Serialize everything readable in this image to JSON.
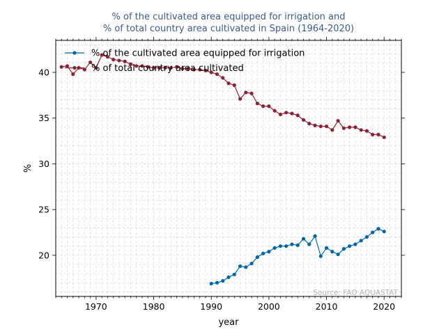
{
  "chart_data": {
    "type": "line",
    "title": "% of the cultivated area equipped for irrigation and\n% of total country area cultivated in Spain (1964-2020)",
    "xlabel": "year",
    "ylabel": "%",
    "xlim": [
      1963,
      2023
    ],
    "ylim": [
      15.5,
      43.5
    ],
    "x_ticks": [
      1970,
      1980,
      1990,
      2000,
      2010,
      2020
    ],
    "y_ticks": [
      20,
      25,
      30,
      35,
      40
    ],
    "grid": true,
    "legend_position": "top-left",
    "source": "Source: FAO AQUASTAT",
    "series": [
      {
        "name": "% of the cultivated area equipped for irrigation",
        "color": "#0066aa",
        "x": [
          1990,
          1991,
          1992,
          1993,
          1994,
          1995,
          1996,
          1997,
          1998,
          1999,
          2000,
          2001,
          2002,
          2003,
          2004,
          2005,
          2006,
          2007,
          2008,
          2009,
          2010,
          2011,
          2012,
          2013,
          2014,
          2015,
          2016,
          2017,
          2018,
          2019,
          2020
        ],
        "y": [
          16.9,
          17.0,
          17.2,
          17.6,
          17.9,
          18.8,
          18.7,
          19.1,
          19.8,
          20.2,
          20.4,
          20.8,
          21.0,
          21.0,
          21.2,
          21.1,
          21.8,
          21.2,
          22.1,
          19.9,
          20.8,
          20.4,
          20.1,
          20.7,
          21.0,
          21.2,
          21.6,
          22.0,
          22.5,
          22.9,
          22.6
        ]
      },
      {
        "name": "% of total country area cultivated",
        "color": "#8b2335",
        "x": [
          1964,
          1965,
          1966,
          1967,
          1968,
          1969,
          1970,
          1971,
          1972,
          1973,
          1974,
          1975,
          1976,
          1977,
          1978,
          1979,
          1980,
          1981,
          1982,
          1983,
          1984,
          1985,
          1986,
          1987,
          1988,
          1989,
          1990,
          1991,
          1992,
          1993,
          1994,
          1995,
          1996,
          1997,
          1998,
          1999,
          2000,
          2001,
          2002,
          2003,
          2004,
          2005,
          2006,
          2007,
          2008,
          2009,
          2010,
          2011,
          2012,
          2013,
          2014,
          2015,
          2016,
          2017,
          2018,
          2019,
          2020
        ],
        "y": [
          40.6,
          40.7,
          39.8,
          40.5,
          40.3,
          41.1,
          40.5,
          41.9,
          41.7,
          41.4,
          41.3,
          41.2,
          40.9,
          40.7,
          40.7,
          40.6,
          40.5,
          40.5,
          40.5,
          40.5,
          40.6,
          40.4,
          40.4,
          40.3,
          40.3,
          40.2,
          40.0,
          39.8,
          39.4,
          38.8,
          38.6,
          37.1,
          37.8,
          37.7,
          36.6,
          36.3,
          36.3,
          35.8,
          35.4,
          35.6,
          35.5,
          35.3,
          34.8,
          34.4,
          34.2,
          34.1,
          34.1,
          33.7,
          34.7,
          33.9,
          34.0,
          34.0,
          33.7,
          33.6,
          33.2,
          33.2,
          32.9
        ]
      }
    ]
  }
}
